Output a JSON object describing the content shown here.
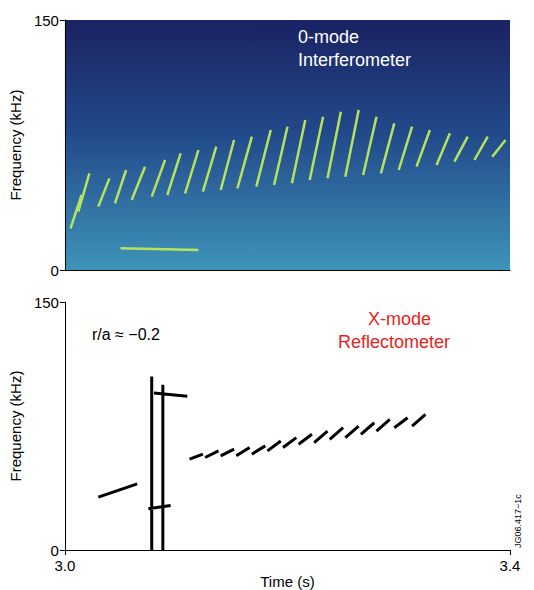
{
  "chart_data": [
    {
      "type": "line",
      "annotations": [
        "0-mode",
        "Interferometer"
      ],
      "y_label": "Frequency (kHz)",
      "color": "#b5e35c",
      "xlim": [
        3.0,
        3.4
      ],
      "ylim": [
        0,
        150
      ],
      "yticks": [
        0,
        150
      ],
      "tick_labels": "y",
      "grid": false,
      "x": [
        3.005,
        3.015,
        3.015,
        3.012,
        3.022,
        3.022,
        3.03,
        3.04,
        3.04,
        3.045,
        3.055,
        3.055,
        3.06,
        3.072,
        3.072,
        3.078,
        3.09,
        3.09,
        3.092,
        3.104,
        3.104,
        3.108,
        3.12,
        3.12,
        3.124,
        3.136,
        3.136,
        3.14,
        3.152,
        3.152,
        3.155,
        3.168,
        3.168,
        3.172,
        3.185,
        3.185,
        3.188,
        3.2,
        3.2,
        3.204,
        3.216,
        3.216,
        3.22,
        3.232,
        3.232,
        3.236,
        3.248,
        3.248,
        3.252,
        3.264,
        3.264,
        3.268,
        3.28,
        3.28,
        3.284,
        3.296,
        3.296,
        3.3,
        3.312,
        3.312,
        3.316,
        3.328,
        3.328,
        3.334,
        3.346,
        3.346,
        3.35,
        3.362,
        3.362,
        3.368,
        3.38,
        3.38,
        3.384,
        3.396,
        3.396,
        3.05,
        3.12
      ],
      "values": [
        25,
        45,
        null,
        35,
        58,
        null,
        38,
        55,
        null,
        40,
        60,
        null,
        42,
        62,
        null,
        44,
        66,
        null,
        45,
        70,
        null,
        46,
        72,
        null,
        47,
        74,
        null,
        48,
        78,
        null,
        49,
        80,
        null,
        50,
        84,
        null,
        51,
        86,
        null,
        52,
        90,
        null,
        54,
        92,
        null,
        55,
        95,
        null,
        56,
        96,
        null,
        57,
        92,
        null,
        58,
        88,
        null,
        60,
        86,
        null,
        62,
        84,
        null,
        63,
        82,
        null,
        65,
        80,
        null,
        66,
        80,
        null,
        68,
        78,
        null,
        13,
        12
      ]
    },
    {
      "type": "line",
      "annotations": [
        "r/a ≈ −0.2",
        "X-mode",
        "Reflectometer",
        "JG06.417−1c"
      ],
      "x_label": "Time (s)",
      "y_label": "Frequency (kHz)",
      "color": "#000000",
      "xlim": [
        3.0,
        3.4
      ],
      "ylim": [
        0,
        150
      ],
      "xticks": [
        {
          "value": 3,
          "label": "3.0"
        },
        {
          "value": 3.4,
          "label": "3.4"
        }
      ],
      "yticks": [
        0,
        150
      ],
      "grid": false,
      "x": [
        3.03,
        3.065,
        3.065,
        3.075,
        3.095,
        3.095,
        3.08,
        3.11,
        3.11,
        3.078,
        3.078,
        3.078,
        3.088,
        3.088,
        3.088,
        3.112,
        3.124,
        3.124,
        3.126,
        3.138,
        3.138,
        3.14,
        3.152,
        3.152,
        3.154,
        3.166,
        3.166,
        3.168,
        3.18,
        3.18,
        3.182,
        3.194,
        3.194,
        3.196,
        3.208,
        3.208,
        3.21,
        3.222,
        3.222,
        3.224,
        3.236,
        3.236,
        3.238,
        3.25,
        3.25,
        3.252,
        3.264,
        3.264,
        3.266,
        3.278,
        3.278,
        3.28,
        3.292,
        3.292,
        3.296,
        3.308,
        3.308,
        3.312,
        3.324
      ],
      "values": [
        32,
        40,
        null,
        25,
        27,
        null,
        95,
        93,
        null,
        0,
        105,
        null,
        0,
        100,
        null,
        55,
        58,
        null,
        56,
        60,
        null,
        57,
        61,
        null,
        57,
        62,
        null,
        58,
        63,
        null,
        60,
        66,
        null,
        62,
        68,
        null,
        64,
        70,
        null,
        65,
        72,
        null,
        67,
        74,
        null,
        68,
        75,
        null,
        70,
        77,
        null,
        72,
        79,
        null,
        74,
        80,
        null,
        75,
        82
      ]
    }
  ]
}
